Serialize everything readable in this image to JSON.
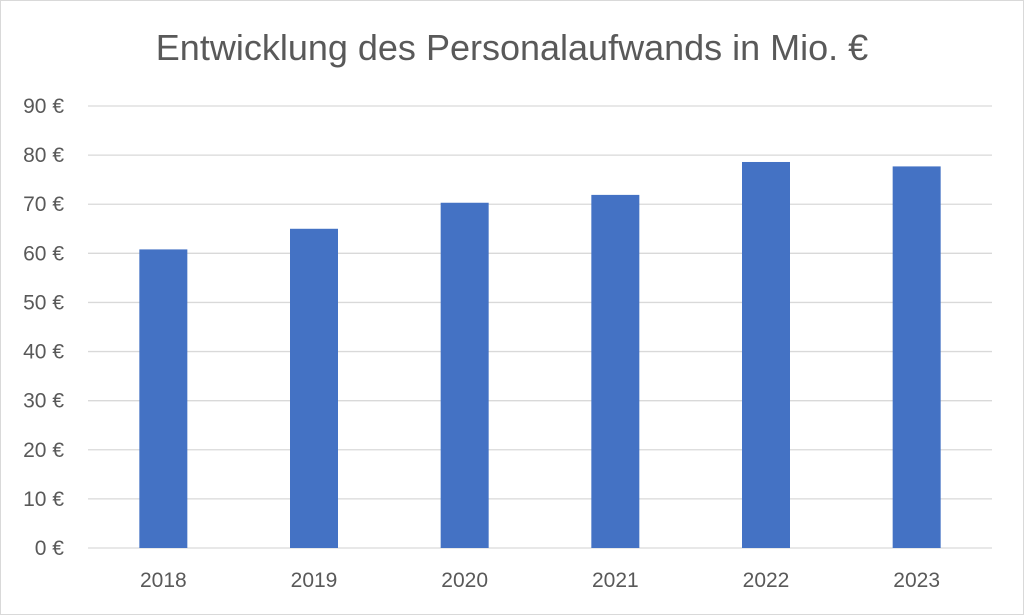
{
  "chart_data": {
    "type": "bar",
    "title": "Entwicklung des Personalaufwands in Mio. €",
    "xlabel": "",
    "ylabel": "",
    "categories": [
      "2018",
      "2019",
      "2020",
      "2021",
      "2022",
      "2023"
    ],
    "values": [
      60.8,
      65.0,
      70.3,
      71.9,
      78.6,
      77.7
    ],
    "ylim": [
      0,
      90
    ],
    "y_ticks": [
      0,
      10,
      20,
      30,
      40,
      50,
      60,
      70,
      80,
      90
    ],
    "y_tick_labels": [
      "0 €",
      "10 €",
      "20 €",
      "30 €",
      "40 €",
      "50 €",
      "60 €",
      "70 €",
      "80 €",
      "90 €"
    ],
    "grid": true,
    "legend": "none",
    "colors": {
      "bar": "#4472c4",
      "grid": "#d9d9d9",
      "text": "#595959"
    }
  }
}
